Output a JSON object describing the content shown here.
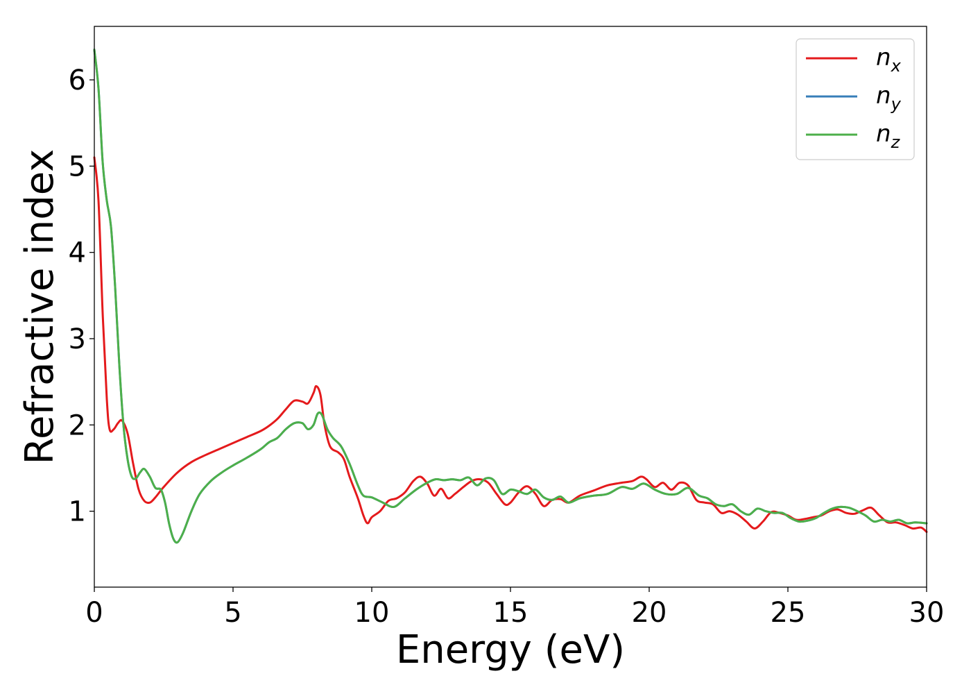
{
  "chart_data": {
    "type": "line",
    "title": "",
    "xlabel": "Energy (eV)",
    "ylabel": "Refractive index",
    "xlim": [
      0,
      30
    ],
    "ylim": [
      0.12,
      6.62
    ],
    "xticks": [
      0,
      5,
      10,
      15,
      20,
      25,
      30
    ],
    "yticks": [
      1,
      2,
      3,
      4,
      5,
      6
    ],
    "grid": false,
    "legend_position": "top-right",
    "series": [
      {
        "name": "n_x",
        "label_base": "n",
        "label_sub": "x",
        "color": "#e41a1c",
        "x": [
          0,
          0.15,
          0.3,
          0.45,
          0.55,
          0.7,
          0.85,
          1.0,
          1.2,
          1.4,
          1.6,
          1.8,
          2.0,
          2.2,
          2.5,
          3.0,
          3.5,
          4.0,
          4.5,
          5.0,
          5.5,
          6.0,
          6.3,
          6.6,
          6.9,
          7.2,
          7.5,
          7.7,
          7.9,
          8.0,
          8.15,
          8.3,
          8.5,
          8.8,
          9.0,
          9.2,
          9.5,
          9.7,
          9.85,
          10.0,
          10.3,
          10.6,
          10.9,
          11.2,
          11.5,
          11.75,
          12.0,
          12.25,
          12.5,
          12.75,
          13.0,
          13.3,
          13.6,
          13.9,
          14.2,
          14.5,
          14.8,
          15.0,
          15.3,
          15.6,
          15.9,
          16.2,
          16.5,
          16.8,
          17.1,
          17.5,
          18.0,
          18.5,
          19.0,
          19.4,
          19.7,
          19.9,
          20.2,
          20.5,
          20.8,
          21.1,
          21.4,
          21.7,
          22.0,
          22.3,
          22.6,
          22.9,
          23.2,
          23.5,
          23.8,
          24.1,
          24.4,
          24.7,
          25.0,
          25.3,
          25.6,
          25.9,
          26.2,
          26.5,
          26.8,
          27.1,
          27.4,
          27.7,
          28.0,
          28.3,
          28.6,
          28.9,
          29.2,
          29.5,
          29.8,
          30.0
        ],
        "y": [
          5.1,
          4.6,
          3.3,
          2.3,
          1.95,
          1.95,
          2.02,
          2.05,
          1.9,
          1.55,
          1.25,
          1.12,
          1.1,
          1.16,
          1.28,
          1.45,
          1.57,
          1.65,
          1.72,
          1.79,
          1.86,
          1.93,
          1.99,
          2.07,
          2.18,
          2.28,
          2.27,
          2.25,
          2.37,
          2.45,
          2.35,
          2.0,
          1.75,
          1.68,
          1.6,
          1.4,
          1.15,
          0.95,
          0.86,
          0.93,
          1.0,
          1.12,
          1.15,
          1.22,
          1.35,
          1.4,
          1.32,
          1.18,
          1.26,
          1.15,
          1.2,
          1.28,
          1.35,
          1.37,
          1.33,
          1.2,
          1.08,
          1.1,
          1.22,
          1.29,
          1.2,
          1.06,
          1.13,
          1.14,
          1.1,
          1.18,
          1.24,
          1.3,
          1.33,
          1.35,
          1.4,
          1.37,
          1.28,
          1.33,
          1.25,
          1.33,
          1.3,
          1.13,
          1.1,
          1.08,
          0.98,
          1.0,
          0.96,
          0.88,
          0.8,
          0.88,
          0.99,
          0.98,
          0.95,
          0.9,
          0.91,
          0.93,
          0.95,
          1.0,
          1.02,
          0.98,
          0.97,
          1.01,
          1.04,
          0.95,
          0.87,
          0.87,
          0.84,
          0.8,
          0.81,
          0.76
        ]
      },
      {
        "name": "n_y",
        "label_base": "n",
        "label_sub": "y",
        "color": "#377eb8",
        "x": [
          0,
          0.15,
          0.3,
          0.45,
          0.6,
          0.75,
          0.9,
          1.05,
          1.2,
          1.35,
          1.5,
          1.65,
          1.8,
          2.0,
          2.2,
          2.4,
          2.55,
          2.7,
          2.85,
          3.0,
          3.2,
          3.5,
          3.8,
          4.2,
          4.6,
          5.0,
          5.5,
          6.0,
          6.3,
          6.6,
          6.9,
          7.2,
          7.5,
          7.7,
          7.9,
          8.05,
          8.2,
          8.4,
          8.6,
          8.9,
          9.2,
          9.5,
          9.7,
          10.0,
          10.4,
          10.8,
          11.2,
          11.6,
          12.0,
          12.3,
          12.6,
          12.9,
          13.2,
          13.5,
          13.8,
          14.1,
          14.4,
          14.7,
          15.0,
          15.3,
          15.6,
          15.9,
          16.2,
          16.5,
          16.8,
          17.1,
          17.5,
          18.0,
          18.5,
          19.0,
          19.4,
          19.8,
          20.2,
          20.6,
          21.0,
          21.4,
          21.8,
          22.1,
          22.4,
          22.7,
          23.0,
          23.3,
          23.6,
          23.9,
          24.2,
          24.5,
          24.8,
          25.1,
          25.4,
          25.7,
          26.0,
          26.3,
          26.6,
          26.9,
          27.2,
          27.5,
          27.8,
          28.1,
          28.4,
          28.7,
          29.0,
          29.3,
          29.6,
          30.0
        ],
        "y": [
          6.35,
          5.9,
          5.05,
          4.6,
          4.3,
          3.6,
          2.7,
          2.0,
          1.6,
          1.4,
          1.38,
          1.45,
          1.49,
          1.4,
          1.27,
          1.25,
          1.1,
          0.85,
          0.68,
          0.64,
          0.75,
          1.0,
          1.2,
          1.35,
          1.45,
          1.53,
          1.62,
          1.72,
          1.8,
          1.85,
          1.95,
          2.02,
          2.02,
          1.95,
          2.0,
          2.13,
          2.12,
          1.95,
          1.85,
          1.75,
          1.55,
          1.3,
          1.18,
          1.16,
          1.1,
          1.05,
          1.15,
          1.25,
          1.33,
          1.37,
          1.36,
          1.37,
          1.36,
          1.39,
          1.3,
          1.38,
          1.36,
          1.2,
          1.25,
          1.23,
          1.2,
          1.25,
          1.16,
          1.13,
          1.17,
          1.1,
          1.15,
          1.18,
          1.2,
          1.28,
          1.26,
          1.32,
          1.25,
          1.2,
          1.2,
          1.27,
          1.18,
          1.15,
          1.08,
          1.06,
          1.08,
          1.0,
          0.96,
          1.03,
          1.0,
          0.98,
          0.98,
          0.92,
          0.88,
          0.89,
          0.92,
          0.98,
          1.03,
          1.05,
          1.04,
          1.0,
          0.95,
          0.88,
          0.9,
          0.88,
          0.9,
          0.86,
          0.87,
          0.86
        ]
      },
      {
        "name": "n_z",
        "label_base": "n",
        "label_sub": "z",
        "color": "#4daf4a",
        "x": [
          0,
          0.15,
          0.3,
          0.45,
          0.6,
          0.75,
          0.9,
          1.05,
          1.2,
          1.35,
          1.5,
          1.65,
          1.8,
          2.0,
          2.2,
          2.4,
          2.55,
          2.7,
          2.85,
          3.0,
          3.2,
          3.5,
          3.8,
          4.2,
          4.6,
          5.0,
          5.5,
          6.0,
          6.3,
          6.6,
          6.9,
          7.2,
          7.5,
          7.7,
          7.9,
          8.05,
          8.2,
          8.4,
          8.6,
          8.9,
          9.2,
          9.5,
          9.7,
          10.0,
          10.4,
          10.8,
          11.2,
          11.6,
          12.0,
          12.3,
          12.6,
          12.9,
          13.2,
          13.5,
          13.8,
          14.1,
          14.4,
          14.7,
          15.0,
          15.3,
          15.6,
          15.9,
          16.2,
          16.5,
          16.8,
          17.1,
          17.5,
          18.0,
          18.5,
          19.0,
          19.4,
          19.8,
          20.2,
          20.6,
          21.0,
          21.4,
          21.8,
          22.1,
          22.4,
          22.7,
          23.0,
          23.3,
          23.6,
          23.9,
          24.2,
          24.5,
          24.8,
          25.1,
          25.4,
          25.7,
          26.0,
          26.3,
          26.6,
          26.9,
          27.2,
          27.5,
          27.8,
          28.1,
          28.4,
          28.7,
          29.0,
          29.3,
          29.6,
          30.0
        ],
        "y": [
          6.35,
          5.9,
          5.05,
          4.6,
          4.3,
          3.6,
          2.7,
          2.0,
          1.6,
          1.4,
          1.38,
          1.45,
          1.49,
          1.4,
          1.27,
          1.25,
          1.1,
          0.85,
          0.68,
          0.64,
          0.75,
          1.0,
          1.2,
          1.35,
          1.45,
          1.53,
          1.62,
          1.72,
          1.8,
          1.85,
          1.95,
          2.02,
          2.02,
          1.95,
          2.0,
          2.13,
          2.12,
          1.95,
          1.85,
          1.75,
          1.55,
          1.3,
          1.18,
          1.16,
          1.1,
          1.05,
          1.15,
          1.25,
          1.33,
          1.37,
          1.36,
          1.37,
          1.36,
          1.39,
          1.3,
          1.38,
          1.36,
          1.2,
          1.25,
          1.23,
          1.2,
          1.25,
          1.16,
          1.13,
          1.17,
          1.1,
          1.15,
          1.18,
          1.2,
          1.28,
          1.26,
          1.32,
          1.25,
          1.2,
          1.2,
          1.27,
          1.18,
          1.15,
          1.08,
          1.06,
          1.08,
          1.0,
          0.96,
          1.03,
          1.0,
          0.98,
          0.98,
          0.92,
          0.88,
          0.89,
          0.92,
          0.98,
          1.03,
          1.05,
          1.04,
          1.0,
          0.95,
          0.88,
          0.9,
          0.88,
          0.9,
          0.86,
          0.87,
          0.86
        ]
      }
    ]
  }
}
